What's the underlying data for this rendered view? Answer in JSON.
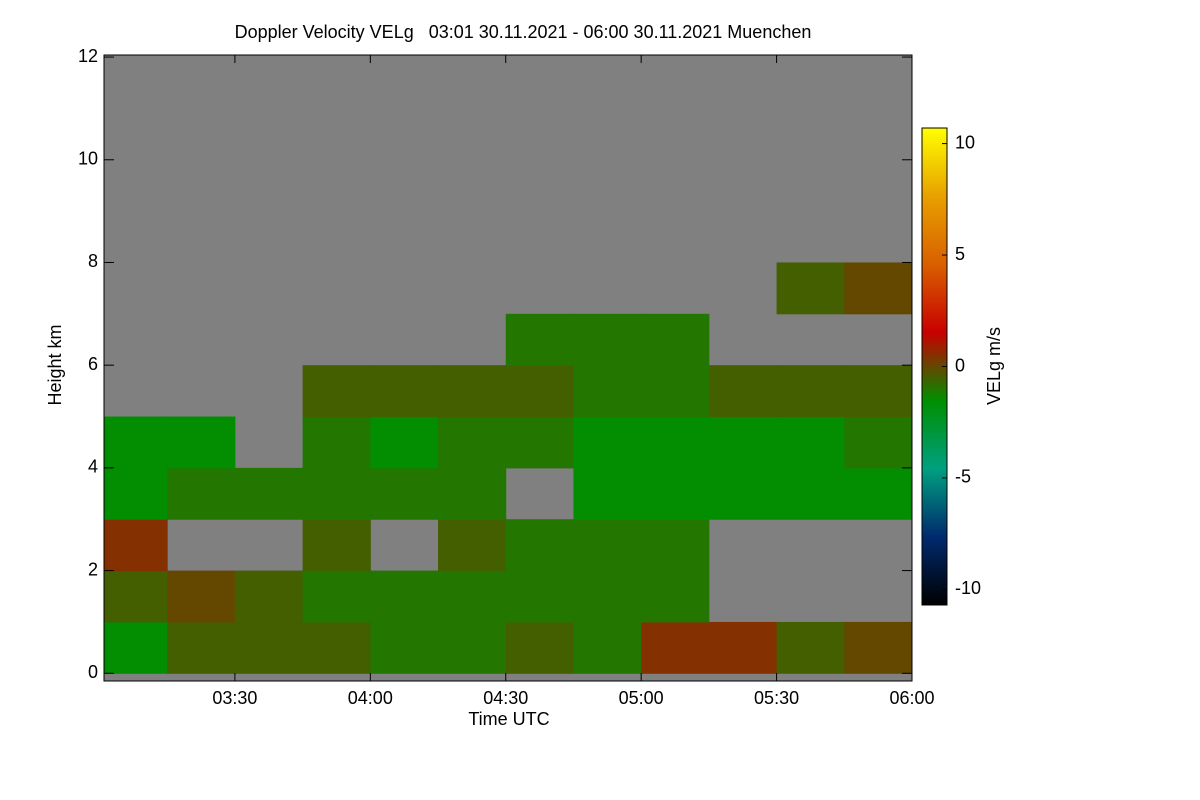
{
  "chart_data": {
    "type": "heatmap",
    "title": "Doppler Velocity VELg   03:01 30.11.2021 - 06:00 30.11.2021 Muenchen",
    "x_label": "Time UTC",
    "y_label": "Height km",
    "colorbar_label": "VELg m/s",
    "x": [
      3.0167,
      3.25,
      3.5,
      3.75,
      4.0,
      4.25,
      4.5,
      4.75,
      5.0,
      5.25,
      5.5,
      5.75
    ],
    "y": [
      0,
      1,
      2,
      3,
      4,
      5,
      6,
      7,
      8,
      9,
      10,
      11
    ],
    "values": [
      [
        -1.5,
        -0.5,
        -0.5,
        -0.5,
        -1,
        -1,
        -0.5,
        -1,
        0.5,
        0.5,
        -0.5,
        0
      ],
      [
        -0.5,
        0,
        -0.5,
        -1,
        -1,
        -1,
        -1,
        -1,
        -1,
        null,
        null,
        null
      ],
      [
        0.5,
        null,
        null,
        -0.5,
        null,
        -0.5,
        -1,
        -1,
        -1,
        null,
        null,
        null
      ],
      [
        -1.5,
        -1,
        -1,
        -1,
        -1,
        -1,
        null,
        -1.5,
        -1.5,
        -1.5,
        -1.5,
        -1.5
      ],
      [
        -1.5,
        -1.5,
        null,
        -1,
        -1.5,
        -1,
        -1,
        -1.5,
        -1.5,
        -1.5,
        -1.5,
        -1
      ],
      [
        null,
        null,
        null,
        -0.5,
        -0.5,
        -0.5,
        -0.5,
        -1,
        -1,
        -0.5,
        -0.5,
        -0.5
      ],
      [
        null,
        null,
        null,
        null,
        null,
        null,
        -1,
        -1,
        -1,
        null,
        null,
        null
      ],
      [
        null,
        null,
        null,
        null,
        null,
        null,
        null,
        null,
        null,
        null,
        -0.5,
        0
      ],
      [
        null,
        null,
        null,
        null,
        null,
        null,
        null,
        null,
        null,
        null,
        null,
        null
      ],
      [
        null,
        null,
        null,
        null,
        null,
        null,
        null,
        null,
        null,
        null,
        null,
        null
      ],
      [
        null,
        null,
        null,
        null,
        null,
        null,
        null,
        null,
        null,
        null,
        null,
        null
      ],
      [
        null,
        null,
        null,
        null,
        null,
        null,
        null,
        null,
        null,
        null,
        null,
        null
      ]
    ],
    "xlim": [
      3.0167,
      6.0
    ],
    "xticks": [
      {
        "value": 3.5,
        "label": "03:30"
      },
      {
        "value": 4.0,
        "label": "04:00"
      },
      {
        "value": 4.5,
        "label": "04:30"
      },
      {
        "value": 5.0,
        "label": "05:00"
      },
      {
        "value": 5.5,
        "label": "05:30"
      },
      {
        "value": 6.0,
        "label": "06:00"
      }
    ],
    "ylim": [
      -0.15,
      12.04
    ],
    "yticks": [
      0,
      2,
      4,
      6,
      8,
      10,
      12
    ],
    "clim": [
      -10.7,
      10.7
    ],
    "cticks": [
      -10,
      -5,
      0,
      5,
      10
    ],
    "colormap": [
      "#000000",
      "#002a6e",
      "#00a080",
      "#008f00",
      "#c80000",
      "#d86000",
      "#e8a000",
      "#ffff00"
    ],
    "nodata_color": "#808080"
  }
}
